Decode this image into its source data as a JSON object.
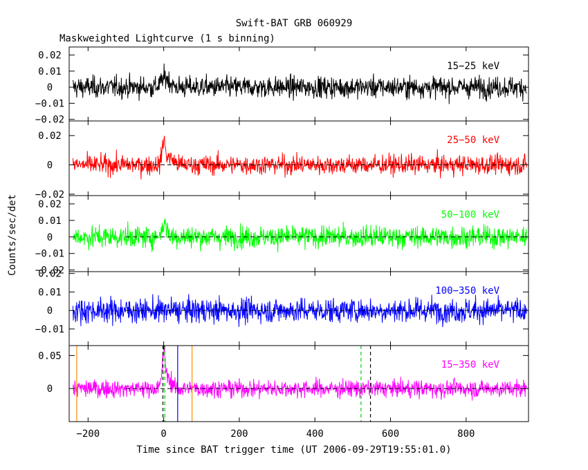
{
  "chart_data": {
    "type": "line",
    "title": "Swift-BAT GRB 060929",
    "subtitle": "Maskweighted Lightcurve (1 s binning)",
    "xlabel": "Time since BAT trigger time (UT 2006-09-29T19:55:01.0)",
    "ylabel": "Counts/sec/det",
    "xlim": [
      -250,
      965
    ],
    "x_range_data": [
      -240,
      960
    ],
    "x_ticks": [
      -200,
      0,
      200,
      400,
      600,
      800
    ],
    "x_tick_labels": [
      "−200",
      "0",
      "200",
      "400",
      "600",
      "800"
    ],
    "grid": false,
    "panels": [
      {
        "name": "15−25 keV",
        "color": "#000000",
        "ylim": [
          -0.021,
          0.025
        ],
        "y_ticks": [
          -0.02,
          -0.01,
          0,
          0.01,
          0.02
        ],
        "y_tick_labels": [
          "−0.02",
          "−0.01",
          "0",
          "0.01",
          "0.02"
        ],
        "noise_sigma": 0.0055,
        "bursts": [
          {
            "t": 5,
            "amp": 0.006,
            "width": 15
          }
        ],
        "zero_line": false,
        "markers": []
      },
      {
        "name": "25−50 keV",
        "color": "#ff0000",
        "ylim": [
          -0.021,
          0.03
        ],
        "y_ticks": [
          -0.02,
          0,
          0.02
        ],
        "y_tick_labels": [
          "−0.02",
          "0",
          "0.02"
        ],
        "noise_sigma": 0.0055,
        "bursts": [
          {
            "t": 0,
            "amp": 0.015,
            "width": 6
          },
          {
            "t": 15,
            "amp": 0.005,
            "width": 15
          }
        ],
        "zero_line": true,
        "markers": []
      },
      {
        "name": "50−100 keV",
        "color": "#00ff00",
        "ylim": [
          -0.021,
          0.025
        ],
        "y_ticks": [
          -0.02,
          -0.01,
          0,
          0.01,
          0.02
        ],
        "y_tick_labels": [
          "−0.02",
          "−0.01",
          "0",
          "0.01",
          "0.02"
        ],
        "noise_sigma": 0.0055,
        "bursts": [
          {
            "t": 2,
            "amp": 0.008,
            "width": 10
          }
        ],
        "zero_line": true,
        "markers": []
      },
      {
        "name": "100−350 keV",
        "color": "#0000ff",
        "ylim": [
          -0.019,
          0.021
        ],
        "y_ticks": [
          -0.01,
          0,
          0.01,
          0.02
        ],
        "y_tick_labels": [
          "−0.01",
          "0",
          "0.01",
          "0.02"
        ],
        "noise_sigma": 0.0055,
        "bursts": [],
        "zero_line": true,
        "markers": []
      },
      {
        "name": "15−350 keV",
        "color": "#ff00ff",
        "ylim": [
          -0.05,
          0.065
        ],
        "y_ticks": [
          0,
          0.05
        ],
        "y_tick_labels": [
          "0",
          "0.05"
        ],
        "noise_sigma": 0.011,
        "bursts": [
          {
            "t": 0,
            "amp": 0.05,
            "width": 6
          },
          {
            "t": 12,
            "amp": 0.015,
            "width": 12
          }
        ],
        "zero_line": true,
        "markers": [
          {
            "x": -230,
            "color": "#ff8c00",
            "style": "solid"
          },
          {
            "x": -2,
            "color": "#000000",
            "style": "dashed"
          },
          {
            "x": 3,
            "color": "#00cc00",
            "style": "dashed"
          },
          {
            "x": 37,
            "color": "#0000ff",
            "style": "solid"
          },
          {
            "x": 75,
            "color": "#ff8c00",
            "style": "solid"
          },
          {
            "x": 522,
            "color": "#00cc00",
            "style": "dashed"
          },
          {
            "x": 547,
            "color": "#000000",
            "style": "dashed"
          }
        ]
      }
    ]
  }
}
